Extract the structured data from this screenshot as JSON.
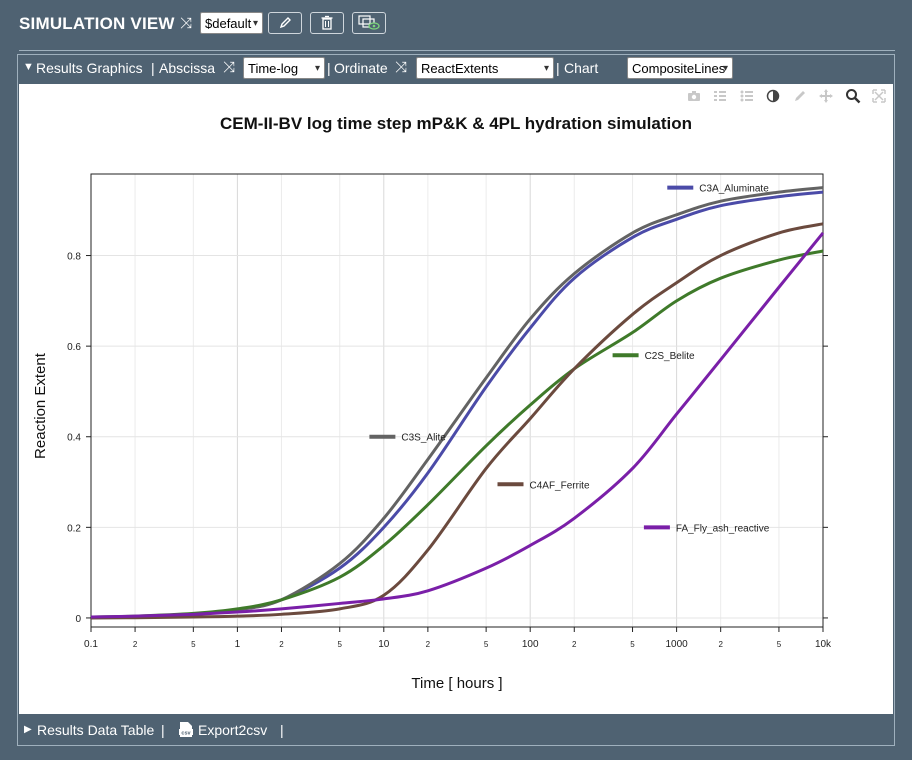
{
  "header": {
    "title": "SIMULATION VIEW",
    "preset_value": "$default",
    "buttons": [
      "edit-icon",
      "trash-icon",
      "view-icon"
    ]
  },
  "results": {
    "section_label": "Results Graphics",
    "abscissa_label": "Abscissa",
    "abscissa_value": "Time-log",
    "ordinate_label": "Ordinate",
    "ordinate_value": "ReactExtents",
    "chart_label": "Chart",
    "chart_value": "CompositeLines"
  },
  "bottom": {
    "data_table_label": "Results Data Table",
    "export_label": "Export2csv",
    "export_icon_text": "csv"
  },
  "colors": {
    "background": "#4f6272",
    "C3A_Aluminate": "#4b4ba8",
    "C3S_Alite": "#636363",
    "C2S_Belite": "#3f7a2a",
    "C4AF_Ferrite": "#6b4a3e",
    "FA_Fly_ash_reactive": "#7a1fa8"
  },
  "chart_data": {
    "type": "line",
    "title": "CEM-II-BV log time step mP&K & 4PL hydration simulation",
    "xlabel": "Time [ hours ]",
    "ylabel": "Reaction Extent",
    "xscale": "log",
    "xlim": [
      0.1,
      10000
    ],
    "ylim": [
      -0.02,
      0.98
    ],
    "grid": true,
    "x": [
      0.1,
      0.2,
      0.5,
      1,
      2,
      5,
      10,
      20,
      50,
      100,
      200,
      500,
      1000,
      2000,
      5000,
      10000
    ],
    "xticks": [
      "0.1",
      "2",
      "5",
      "1",
      "2",
      "5",
      "10",
      "2",
      "5",
      "100",
      "2",
      "5",
      "1000",
      "2",
      "5",
      "10k"
    ],
    "yticks": [
      "0",
      "0.2",
      "0.4",
      "0.6",
      "0.8"
    ],
    "ytick_values": [
      0,
      0.2,
      0.4,
      0.6,
      0.8
    ],
    "series": [
      {
        "name": "C3A_Aluminate",
        "color": "#4b4ba8",
        "values": [
          0.001,
          0.002,
          0.008,
          0.018,
          0.04,
          0.11,
          0.2,
          0.32,
          0.51,
          0.64,
          0.75,
          0.84,
          0.88,
          0.91,
          0.93,
          0.94
        ],
        "label_pos": [
          1300,
          0.95
        ]
      },
      {
        "name": "C3S_Alite",
        "color": "#636363",
        "values": [
          0.001,
          0.002,
          0.008,
          0.018,
          0.04,
          0.12,
          0.22,
          0.35,
          0.53,
          0.66,
          0.76,
          0.85,
          0.89,
          0.92,
          0.94,
          0.95
        ],
        "label_pos": [
          12,
          0.4
        ]
      },
      {
        "name": "C2S_Belite",
        "color": "#3f7a2a",
        "values": [
          0.002,
          0.004,
          0.01,
          0.02,
          0.04,
          0.09,
          0.16,
          0.25,
          0.38,
          0.47,
          0.55,
          0.63,
          0.7,
          0.75,
          0.79,
          0.81
        ],
        "label_pos": [
          550,
          0.58
        ]
      },
      {
        "name": "C4AF_Ferrite",
        "color": "#6b4a3e",
        "values": [
          0,
          0.0005,
          0.002,
          0.004,
          0.008,
          0.02,
          0.05,
          0.15,
          0.33,
          0.44,
          0.55,
          0.67,
          0.74,
          0.8,
          0.85,
          0.87
        ],
        "label_pos": [
          90,
          0.295
        ]
      },
      {
        "name": "FA_Fly_ash_reactive",
        "color": "#7a1fa8",
        "values": [
          0.002,
          0.004,
          0.008,
          0.013,
          0.02,
          0.032,
          0.042,
          0.06,
          0.11,
          0.16,
          0.22,
          0.33,
          0.45,
          0.57,
          0.73,
          0.85
        ],
        "label_pos": [
          900,
          0.2
        ]
      }
    ]
  }
}
